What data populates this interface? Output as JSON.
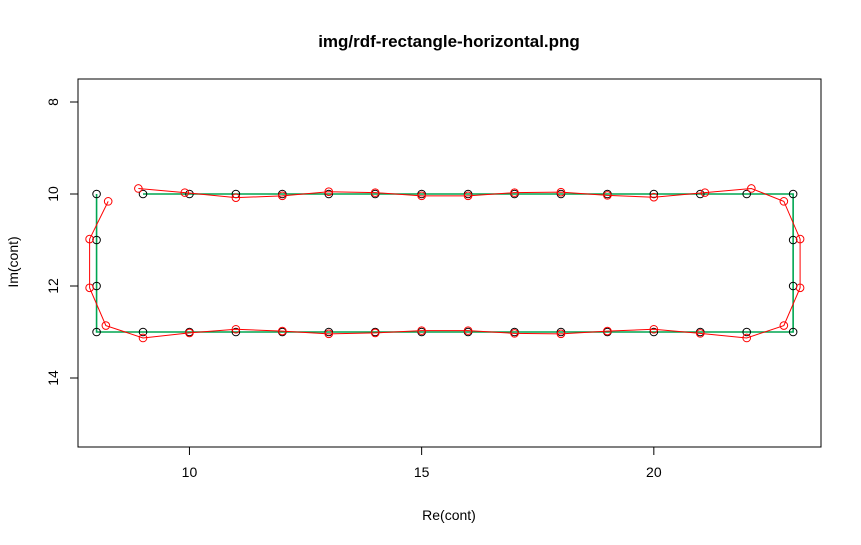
{
  "chart_data": {
    "type": "line",
    "title": "img/rdf-rectangle-horizontal.png",
    "xlabel": "Re(cont)",
    "ylabel": "Im(cont)",
    "xlim": [
      7.6,
      23.6
    ],
    "ylim": [
      15.5,
      7.5
    ],
    "y_reversed": true,
    "x_ticks": [
      10,
      15,
      20
    ],
    "y_ticks": [
      8,
      10,
      12,
      14
    ],
    "grid": false,
    "legend": "none",
    "series": [
      {
        "color": "#000000",
        "points": [
          [
            9,
            10
          ],
          [
            10,
            10
          ],
          [
            11,
            10
          ],
          [
            12,
            10
          ],
          [
            13,
            10
          ],
          [
            14,
            10
          ],
          [
            15,
            10
          ],
          [
            16,
            10
          ],
          [
            17,
            10
          ],
          [
            18,
            10
          ],
          [
            19,
            10
          ],
          [
            20,
            10
          ],
          [
            21,
            10
          ],
          [
            22,
            10
          ],
          [
            23,
            10
          ],
          [
            23,
            11
          ],
          [
            23,
            12
          ],
          [
            23,
            13
          ],
          [
            22,
            13
          ],
          [
            21,
            13
          ],
          [
            20,
            13
          ],
          [
            19,
            13
          ],
          [
            18,
            13
          ],
          [
            17,
            13
          ],
          [
            16,
            13
          ],
          [
            15,
            13
          ],
          [
            14,
            13
          ],
          [
            13,
            13
          ],
          [
            12,
            13
          ],
          [
            11,
            13
          ],
          [
            10,
            13
          ],
          [
            9,
            13
          ],
          [
            8,
            13
          ],
          [
            8,
            12
          ],
          [
            8,
            11
          ],
          [
            8,
            10
          ]
        ],
        "line_color": "#00a651"
      },
      {
        "color": "#ff0000",
        "points": [
          [
            8.9,
            9.88
          ],
          [
            9.9,
            9.97
          ],
          [
            11,
            10.08
          ],
          [
            12,
            10.04
          ],
          [
            13,
            9.95
          ],
          [
            14,
            9.97
          ],
          [
            15,
            10.04
          ],
          [
            16,
            10.04
          ],
          [
            17,
            9.97
          ],
          [
            18,
            9.96
          ],
          [
            19,
            10.03
          ],
          [
            20,
            10.07
          ],
          [
            21.1,
            9.97
          ],
          [
            22.1,
            9.88
          ],
          [
            22.8,
            10.16
          ],
          [
            23.15,
            10.98
          ],
          [
            23.15,
            12.04
          ],
          [
            22.8,
            12.86
          ],
          [
            22,
            13.13
          ],
          [
            21,
            13.03
          ],
          [
            20,
            12.94
          ],
          [
            19,
            12.98
          ],
          [
            18,
            13.04
          ],
          [
            17,
            13.03
          ],
          [
            16,
            12.97
          ],
          [
            15,
            12.97
          ],
          [
            14,
            13.02
          ],
          [
            13,
            13.04
          ],
          [
            12,
            12.98
          ],
          [
            11,
            12.94
          ],
          [
            10,
            13.02
          ],
          [
            9,
            13.13
          ],
          [
            8.2,
            12.86
          ],
          [
            7.85,
            12.04
          ],
          [
            7.85,
            10.98
          ],
          [
            8.25,
            10.16
          ]
        ]
      }
    ]
  }
}
